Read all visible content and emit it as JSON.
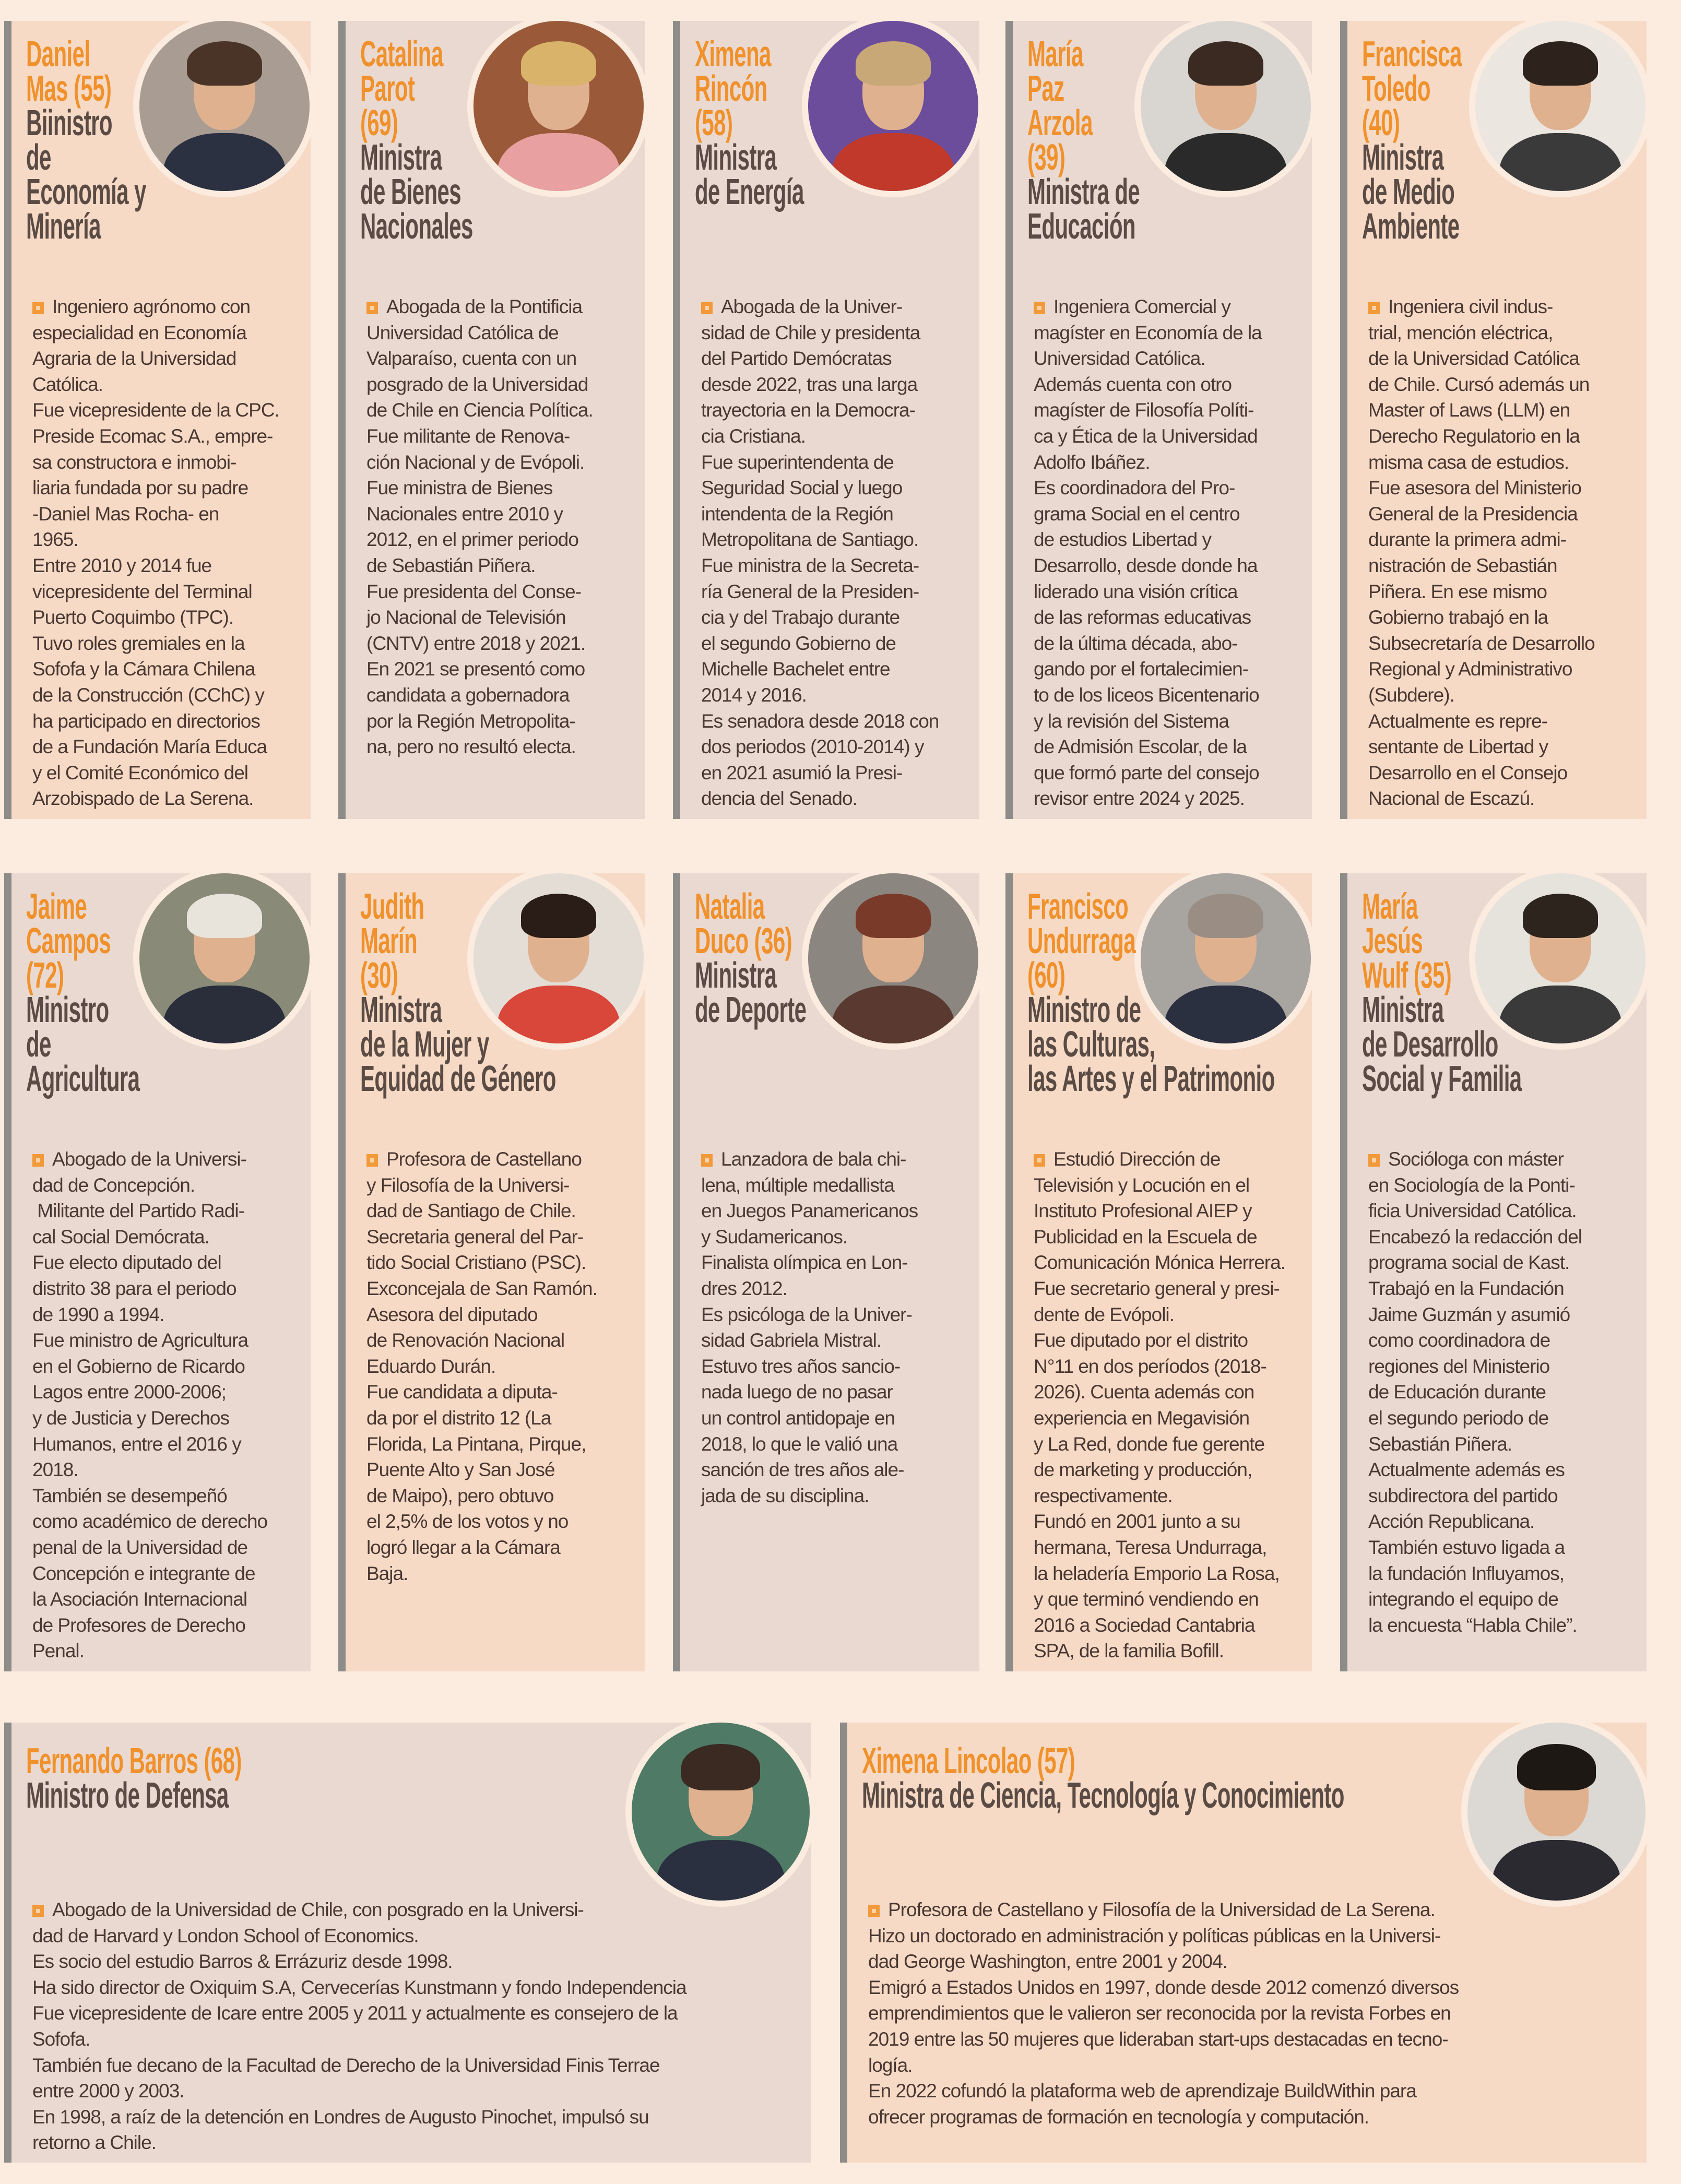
{
  "colors": {
    "accent": "#f0912c",
    "title": "#5a4b44",
    "text": "#4a3832",
    "card_peach": "#f6dac6",
    "card_grey": "#ead9d1",
    "background": "#fcebdf",
    "bullet": "#f29a3a"
  },
  "cards": [
    {
      "name": "Daniel\nMas (55)",
      "title": "Biinistro\nde\nEconomía y\nMinería",
      "tone": "peach",
      "photo": {
        "bg": "#a99c93",
        "hair": "#4a3428",
        "torso": "#2b3140"
      },
      "bio": "Ingeniero agrónomo con\nespecialidad en Economía\nAgraria de la Universidad\nCatólica.\nFue vicepresidente de la CPC.\nPreside Ecomac S.A., empre-\nsa constructora e inmobi-\nliaria fundada por su padre\n-Daniel Mas Rocha- en\n1965.\nEntre 2010 y 2014 fue\nvicepresidente del Terminal\nPuerto Coquimbo (TPC).\nTuvo roles gremiales en la\nSofofa y la Cámara Chilena\nde la Construcción (CChC) y\nha participado en directorios\nde a Fundación María Educa\ny el Comité Económico del\nArzobispado de La Serena."
    },
    {
      "name": "Catalina\nParot\n(69)",
      "title": "Ministra\nde Bienes\nNacionales",
      "tone": "grey",
      "photo": {
        "bg": "#9a5a3a",
        "hair": "#d9b36a",
        "torso": "#e8a0a0"
      },
      "bio": "Abogada de la Pontificia\nUniversidad Católica de\nValparaíso, cuenta con un\nposgrado de la Universidad\nde Chile en Ciencia Política.\nFue militante de Renova-\nción Nacional y de Evópoli.\nFue ministra de Bienes\nNacionales entre 2010 y\n2012, en el primer periodo\nde Sebastián Piñera.\nFue presidenta del Conse-\njo Nacional de Televisión\n(CNTV) entre 2018 y 2021.\nEn 2021 se presentó como\ncandidata a gobernadora\npor la Región Metropolita-\nna, pero no resultó electa."
    },
    {
      "name": "Ximena\nRincón\n(58)",
      "title": "Ministra\nde Energía",
      "tone": "grey",
      "photo": {
        "bg": "#6b4d9c",
        "hair": "#c9a878",
        "torso": "#c0392b"
      },
      "bio": "Abogada de la Univer-\nsidad de Chile y presidenta\ndel Partido Demócratas\ndesde 2022, tras una larga\ntrayectoria en la Democra-\ncia Cristiana.\nFue superintendenta de\nSeguridad Social y luego\nintendenta de la Región\nMetropolitana de Santiago.\nFue ministra de la Secreta-\nría General de la Presiden-\ncia y del Trabajo durante\nel segundo Gobierno de\nMichelle Bachelet entre\n2014 y 2016.\nEs senadora desde 2018 con\ndos periodos (2010-2014) y\nen 2021 asumió la Presi-\ndencia del Senado."
    },
    {
      "name": "María\nPaz\nArzola\n(39)",
      "title": "Ministra de\nEducación",
      "tone": "grey",
      "photo": {
        "bg": "#d9d6d2",
        "hair": "#3a2a22",
        "torso": "#2a2a2a"
      },
      "bio": "Ingeniera Comercial y\nmagíster en Economía de la\nUniversidad Católica.\nAdemás cuenta con otro\nmagíster de Filosofía Políti-\nca y Ética de la Universidad\nAdolfo Ibáñez.\nEs coordinadora del Pro-\ngrama Social en el centro\nde estudios Libertad y\nDesarrollo, desde donde ha\nliderado una visión crítica\nde las reformas educativas\nde la última década, abo-\ngando por el fortalecimien-\nto de los liceos Bicentenario\ny la revisión del Sistema\nde Admisión Escolar, de la\nque formó parte del consejo\nrevisor entre 2024 y 2025."
    },
    {
      "name": "Francisca\nToledo\n(40)",
      "title": "Ministra\nde Medio\nAmbiente",
      "tone": "peach",
      "photo": {
        "bg": "#ece6e0",
        "hair": "#2e221c",
        "torso": "#3a3a3a"
      },
      "bio": "Ingeniera civil indus-\ntrial, mención eléctrica,\nde la Universidad Católica\nde Chile. Cursó además un\nMaster of Laws (LLM) en\nDerecho Regulatorio en la\nmisma casa de estudios.\nFue asesora del Ministerio\nGeneral de la Presidencia\ndurante la primera admi-\nnistración de Sebastián\nPiñera. En ese mismo\nGobierno trabajó en la\nSubsecretaría de Desarrollo\nRegional y Administrativo\n(Subdere).\nActualmente es repre-\nsentante de Libertad y\nDesarrollo en el Consejo\nNacional de Escazú."
    },
    {
      "name": "Jaime\nCampos\n(72)",
      "title": "Ministro\nde\nAgricultura",
      "tone": "grey",
      "photo": {
        "bg": "#8a8a78",
        "hair": "#e8e4dc",
        "torso": "#2a2e3a"
      },
      "bio": "Abogado de la Universi-\ndad de Concepción.\n Militante del Partido Radi-\ncal Social Demócrata.\nFue electo diputado del\ndistrito 38 para el periodo\nde 1990 a 1994.\nFue ministro de Agricultura\nen el Gobierno de Ricardo\nLagos entre 2000-2006;\ny de Justicia y Derechos\nHumanos, entre el 2016 y\n2018.\nTambién se desempeñó\ncomo académico de derecho\npenal de la Universidad de\nConcepción e integrante de\nla Asociación Internacional\nde Profesores de Derecho\nPenal."
    },
    {
      "name": "Judith\nMarín\n(30)",
      "title": "Ministra\nde la Mujer y\nEquidad de Género",
      "tone": "peach",
      "photo": {
        "bg": "#e4ddd6",
        "hair": "#2a1c16",
        "torso": "#d8473a"
      },
      "bio": "Profesora de Castellano\ny Filosofía de la Universi-\ndad de Santiago de Chile.\nSecretaria general del Par-\ntido Social Cristiano (PSC).\nExconcejala de San Ramón.\nAsesora del diputado\nde Renovación Nacional\nEduardo Durán.\nFue candidata a diputa-\nda por el distrito 12 (La\nFlorida, La Pintana, Pirque,\nPuente Alto y San José\nde Maipo), pero obtuvo\nel 2,5% de los votos y no\nlogró llegar a la Cámara\nBaja."
    },
    {
      "name": "Natalia\nDuco (36)",
      "title": "Ministra\nde Deporte",
      "tone": "grey",
      "photo": {
        "bg": "#8c8680",
        "hair": "#7a3a2a",
        "torso": "#5a3a30"
      },
      "bio": "Lanzadora de bala chi-\nlena, múltiple medallista\nen Juegos Panamericanos\ny Sudamericanos.\nFinalista olímpica en Lon-\ndres 2012.\nEs psicóloga de la Univer-\nsidad Gabriela Mistral.\nEstuvo tres años sancio-\nnada luego de no pasar\nun control antidopaje en\n2018, lo que le valió una\nsanción de tres años ale-\njada de su disciplina."
    },
    {
      "name": "Francisco\nUndurraga\n(60)",
      "title": "Ministro de\nlas Culturas,\nlas Artes y el Patrimonio",
      "tone": "peach",
      "photo": {
        "bg": "#a8a4a0",
        "hair": "#9a8e84",
        "torso": "#2a3040"
      },
      "bio": "Estudió Dirección de\nTelevisión y Locución en el\nInstituto Profesional AIEP y\nPublicidad en la Escuela de\nComunicación Mónica Herrera.\nFue secretario general y presi-\ndente de Evópoli.\nFue diputado por el distrito\nN°11 en dos períodos (2018-\n2026). Cuenta además con\nexperiencia en Megavisión\ny La Red, donde fue gerente\nde marketing y producción,\nrespectivamente.\nFundó en 2001 junto a su\nhermana, Teresa Undurraga,\nla heladería Emporio La Rosa,\ny que terminó vendiendo en\n2016 a Sociedad Cantabria\nSPA, de la familia Bofill."
    },
    {
      "name": "María\nJesús\nWulf (35)",
      "title": "Ministra\nde Desarrollo\nSocial y Familia",
      "tone": "grey",
      "photo": {
        "bg": "#e6e2dc",
        "hair": "#2e241e",
        "torso": "#3a3a3a"
      },
      "bio": "Socióloga con máster\nen Sociología de la Ponti-\nficia Universidad Católica.\nEncabezó la redacción del\nprograma social de Kast.\nTrabajó en la Fundación\nJaime Guzmán y asumió\ncomo coordinadora de\nregiones del Ministerio\nde Educación durante\nel segundo periodo de\nSebastián Piñera.\nActualmente además es\nsubdirectora del partido\nAcción Republicana.\nTambién estuvo ligada a\nla fundación Influyamos,\nintegrando el equipo de\nla encuesta “Habla Chile”."
    },
    {
      "name": "Fernando Barros (68)",
      "title": "Ministro de Defensa",
      "tone": "grey",
      "photo": {
        "bg": "#4e7a66",
        "hair": "#3a2a22",
        "torso": "#2a3040"
      },
      "bio": "Abogado de la Universidad de Chile, con posgrado en la Universi-\ndad de Harvard y London School of Economics.\nEs socio del estudio Barros & Errázuriz desde 1998.\nHa sido director de Oxiquim S.A, Cervecerías Kunstmann y fondo Independencia\nFue vicepresidente de Icare entre 2005 y 2011 y actualmente es consejero de la\nSofofa.\nTambién fue decano de la Facultad de Derecho de la Universidad Finis Terrae\nentre 2000 y 2003.\nEn 1998, a raíz de la detención en Londres de Augusto Pinochet, impulsó su\nretorno a Chile."
    },
    {
      "name": "Ximena Lincolao (57)",
      "title": "Ministra de Ciencia, Tecnología y Conocimiento",
      "tone": "peach",
      "photo": {
        "bg": "#dcd8d4",
        "hair": "#1e1814",
        "torso": "#2a2a30"
      },
      "bio": "Profesora de Castellano y Filosofía de la Universidad de La Serena.\nHizo un doctorado en administración y políticas públicas en la Universi-\ndad George Washington, entre 2001 y 2004.\nEmigró a Estados Unidos en 1997, donde desde 2012 comenzó diversos\nemprendimientos que le valieron ser reconocida por la revista Forbes en\n2019 entre las 50 mujeres que lideraban start-ups destacadas en tecno-\nlogía.\nEn 2022 cofundó la plataforma web de aprendizaje BuildWithin para\nofrecer programas de formación en tecnología y computación."
    }
  ]
}
